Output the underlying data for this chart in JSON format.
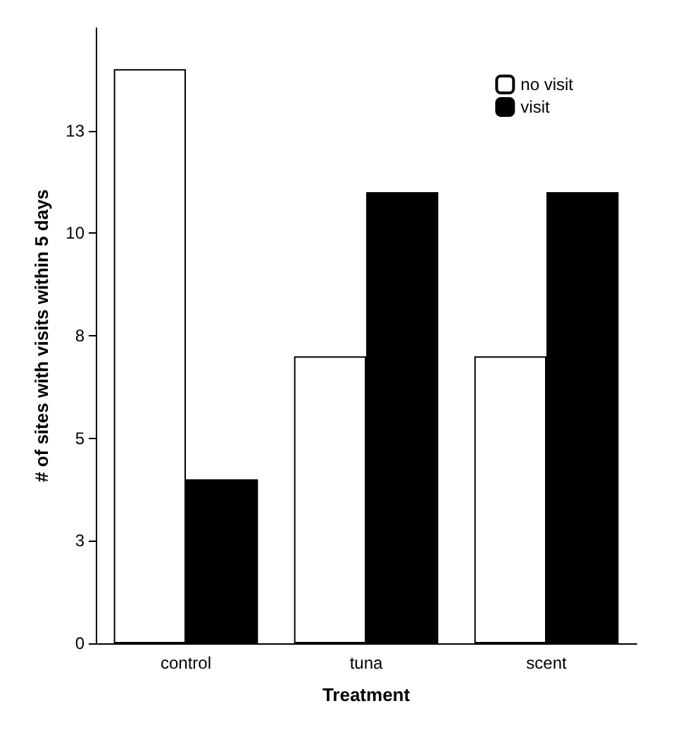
{
  "chart_data": {
    "type": "bar",
    "xlabel": "Treatment",
    "ylabel": "# of sites with visits within 5 days",
    "categories": [
      "control",
      "tuna",
      "scent"
    ],
    "series": [
      {
        "name": "no visit",
        "color": "#ffffff",
        "values": [
          14,
          7,
          7
        ]
      },
      {
        "name": "visit",
        "color": "#000000",
        "values": [
          4,
          11,
          11
        ]
      }
    ],
    "ylim": [
      0,
      15
    ],
    "yticks": [
      0,
      {
        "value": 2.5,
        "label": "3"
      },
      5,
      {
        "value": 7.5,
        "label": "8"
      },
      10,
      {
        "value": 12.5,
        "label": "13"
      }
    ],
    "grid": false,
    "legend": "top right"
  }
}
